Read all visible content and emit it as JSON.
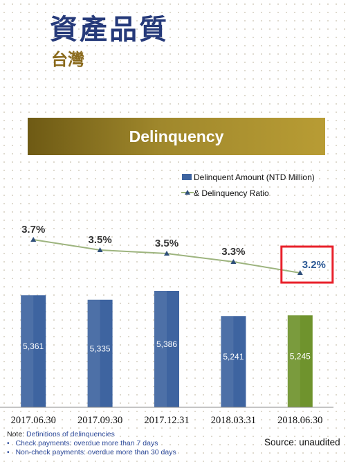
{
  "header": {
    "title": "資產品質",
    "subtitle": "台灣"
  },
  "banner": {
    "label": "Delinquency"
  },
  "chart_data": {
    "type": "bar",
    "categories": [
      "2017.06.30",
      "2017.09.30",
      "2017.12.31",
      "2018.03.31",
      "2018.06.30"
    ],
    "series": [
      {
        "name": "Delinquent Amount (NTD Million)",
        "type": "bar",
        "values": [
          5361,
          5335,
          5386,
          5241,
          5245
        ],
        "data_labels": [
          "5,361",
          "5,335",
          "5,386",
          "5,241",
          "5,245"
        ],
        "colors": [
          "#3e64a0",
          "#3e64a0",
          "#3e64a0",
          "#3e64a0",
          "#6f932d"
        ]
      },
      {
        "name": "& Delinquency Ratio",
        "type": "line",
        "values": [
          3.7,
          3.5,
          3.5,
          3.3,
          3.2
        ],
        "data_labels": [
          "3.7%",
          "3.5%",
          "3.5%",
          "3.3%",
          "3.2%"
        ],
        "color": "#9db47e",
        "marker_color": "#2f4f7a"
      }
    ],
    "highlight_category": "2018.06.30",
    "highlight_color": "#e8202a",
    "legend_position": "top-right",
    "grid": false
  },
  "notes": {
    "heading_label": "Note:",
    "heading_text": "Definitions of delinquencies",
    "bullets": [
      "Check payments: overdue more than 7 days",
      "Non-check payments: overdue more than 30 days"
    ]
  },
  "source": "Source: unaudited"
}
